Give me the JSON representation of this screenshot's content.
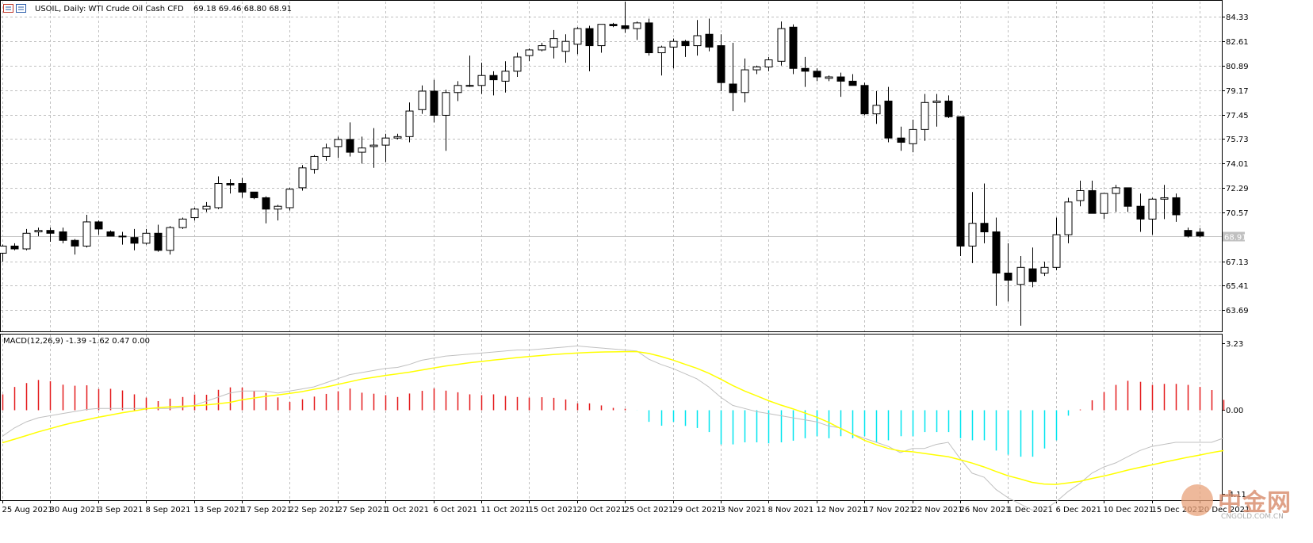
{
  "chart_data": {
    "type": "candlestick",
    "symbol": "USOIL",
    "timeframe": "Daily",
    "description": "WTI Crude Oil Cash CFD",
    "header_text": "USOIL, Daily:  WTI Crude Oil Cash CFD",
    "ohlc_text": "69.18 69.46 68.80 68.91",
    "last_price_label": "68.91",
    "last_price": 68.91,
    "price_axis_ticks": [
      "84.33",
      "82.61",
      "80.89",
      "79.17",
      "77.45",
      "75.73",
      "74.01",
      "72.29",
      "70.57",
      "67.13",
      "65.41",
      "63.69"
    ],
    "ylim": [
      62.2,
      85.4
    ],
    "date_labels": [
      {
        "label": "25 Aug 2021",
        "index": 0
      },
      {
        "label": "30 Aug 2021",
        "index": 4
      },
      {
        "label": "3 Sep 2021",
        "index": 8
      },
      {
        "label": "8 Sep 2021",
        "index": 12
      },
      {
        "label": "13 Sep 2021",
        "index": 16
      },
      {
        "label": "17 Sep 2021",
        "index": 20
      },
      {
        "label": "22 Sep 2021",
        "index": 24
      },
      {
        "label": "27 Sep 2021",
        "index": 28
      },
      {
        "label": "1 Oct 2021",
        "index": 32
      },
      {
        "label": "6 Oct 2021",
        "index": 36
      },
      {
        "label": "11 Oct 2021",
        "index": 40
      },
      {
        "label": "15 Oct 2021",
        "index": 44
      },
      {
        "label": "20 Oct 2021",
        "index": 48
      },
      {
        "label": "25 Oct 2021",
        "index": 52
      },
      {
        "label": "29 Oct 2021",
        "index": 56
      },
      {
        "label": "3 Nov 2021",
        "index": 60
      },
      {
        "label": "8 Nov 2021",
        "index": 64
      },
      {
        "label": "12 Nov 2021",
        "index": 68
      },
      {
        "label": "17 Nov 2021",
        "index": 72
      },
      {
        "label": "22 Nov 2021",
        "index": 76
      },
      {
        "label": "26 Nov 2021",
        "index": 80
      },
      {
        "label": "1 Dec 2021",
        "index": 84
      },
      {
        "label": "6 Dec 2021",
        "index": 88
      },
      {
        "label": "10 Dec 2021",
        "index": 92
      },
      {
        "label": "15 Dec 2021",
        "index": 96
      },
      {
        "label": "20 Dec 2021",
        "index": 100
      }
    ],
    "candles": [
      [
        67.7,
        68.3,
        67.1,
        68.2
      ],
      [
        68.2,
        68.4,
        67.9,
        68.0
      ],
      [
        68.0,
        69.4,
        67.9,
        69.1
      ],
      [
        69.2,
        69.5,
        68.9,
        69.3
      ],
      [
        69.3,
        69.5,
        68.5,
        69.1
      ],
      [
        69.2,
        69.5,
        68.4,
        68.6
      ],
      [
        68.6,
        68.7,
        67.6,
        68.2
      ],
      [
        68.2,
        70.4,
        68.1,
        69.9
      ],
      [
        69.9,
        70.0,
        69.0,
        69.4
      ],
      [
        69.2,
        69.3,
        68.9,
        68.9
      ],
      [
        68.9,
        69.2,
        68.3,
        68.9
      ],
      [
        68.8,
        69.4,
        67.9,
        68.4
      ],
      [
        68.4,
        69.4,
        68.3,
        69.1
      ],
      [
        69.1,
        69.7,
        67.8,
        67.9
      ],
      [
        67.9,
        69.6,
        67.6,
        69.5
      ],
      [
        69.5,
        70.2,
        69.4,
        70.1
      ],
      [
        70.2,
        70.9,
        70.0,
        70.8
      ],
      [
        70.8,
        71.3,
        70.6,
        71.0
      ],
      [
        70.9,
        73.1,
        70.8,
        72.6
      ],
      [
        72.6,
        72.9,
        71.9,
        72.5
      ],
      [
        72.6,
        73.0,
        71.6,
        72.0
      ],
      [
        72.0,
        72.0,
        71.5,
        71.6
      ],
      [
        71.6,
        71.7,
        69.8,
        70.8
      ],
      [
        70.8,
        71.1,
        70.0,
        71.0
      ],
      [
        70.9,
        72.3,
        70.7,
        72.2
      ],
      [
        72.3,
        73.9,
        72.1,
        73.7
      ],
      [
        73.6,
        74.6,
        73.3,
        74.5
      ],
      [
        74.5,
        75.4,
        74.2,
        75.1
      ],
      [
        75.2,
        75.9,
        74.4,
        75.7
      ],
      [
        75.7,
        76.9,
        74.5,
        74.8
      ],
      [
        74.8,
        75.9,
        74.0,
        75.1
      ],
      [
        75.2,
        76.5,
        73.7,
        75.3
      ],
      [
        75.3,
        76.1,
        74.1,
        75.8
      ],
      [
        75.8,
        76.1,
        75.7,
        75.9
      ],
      [
        75.9,
        78.3,
        75.5,
        77.7
      ],
      [
        77.8,
        79.5,
        77.5,
        79.1
      ],
      [
        79.1,
        79.9,
        76.9,
        77.4
      ],
      [
        77.4,
        79.2,
        74.9,
        79.0
      ],
      [
        79.0,
        79.8,
        78.4,
        79.5
      ],
      [
        79.5,
        81.6,
        79.4,
        79.5
      ],
      [
        79.5,
        81.1,
        78.9,
        80.2
      ],
      [
        80.2,
        80.5,
        78.8,
        79.9
      ],
      [
        79.8,
        81.2,
        79.0,
        80.5
      ],
      [
        80.5,
        81.8,
        80.1,
        81.5
      ],
      [
        81.6,
        82.1,
        81.2,
        82.0
      ],
      [
        82.0,
        82.5,
        81.9,
        82.3
      ],
      [
        82.2,
        83.4,
        81.4,
        82.8
      ],
      [
        81.9,
        83.1,
        81.1,
        82.6
      ],
      [
        82.4,
        83.6,
        81.7,
        83.5
      ],
      [
        83.5,
        83.7,
        80.5,
        82.3
      ],
      [
        82.3,
        83.8,
        81.8,
        83.8
      ],
      [
        83.8,
        83.9,
        83.6,
        83.7
      ],
      [
        83.7,
        85.4,
        83.2,
        83.5
      ],
      [
        83.5,
        84.0,
        82.7,
        83.9
      ],
      [
        83.9,
        84.2,
        81.6,
        81.8
      ],
      [
        81.8,
        82.3,
        80.2,
        82.2
      ],
      [
        82.2,
        82.8,
        80.7,
        82.6
      ],
      [
        82.6,
        82.7,
        81.5,
        82.3
      ],
      [
        82.3,
        84.1,
        81.6,
        83.0
      ],
      [
        83.1,
        84.2,
        81.9,
        82.2
      ],
      [
        82.3,
        83.1,
        79.1,
        79.7
      ],
      [
        79.6,
        82.5,
        77.7,
        79.0
      ],
      [
        79.0,
        81.4,
        78.3,
        80.6
      ],
      [
        80.6,
        80.9,
        80.3,
        80.8
      ],
      [
        80.8,
        81.5,
        80.5,
        81.3
      ],
      [
        81.2,
        84.0,
        80.9,
        83.5
      ],
      [
        83.6,
        83.8,
        80.3,
        80.7
      ],
      [
        80.7,
        81.5,
        79.4,
        80.5
      ],
      [
        80.5,
        80.7,
        79.8,
        80.1
      ],
      [
        80.0,
        80.2,
        79.8,
        80.1
      ],
      [
        80.1,
        80.4,
        78.7,
        79.8
      ],
      [
        79.8,
        80.3,
        79.5,
        79.5
      ],
      [
        79.5,
        79.7,
        77.4,
        77.5
      ],
      [
        77.5,
        79.1,
        76.8,
        78.1
      ],
      [
        78.4,
        79.4,
        75.5,
        75.8
      ],
      [
        75.8,
        76.6,
        74.9,
        75.5
      ],
      [
        75.4,
        77.1,
        74.8,
        76.4
      ],
      [
        76.4,
        78.9,
        75.6,
        78.3
      ],
      [
        78.3,
        78.9,
        76.6,
        78.4
      ],
      [
        78.4,
        78.8,
        77.2,
        77.3
      ],
      [
        77.3,
        77.3,
        67.5,
        68.2
      ],
      [
        68.2,
        72.0,
        67.0,
        69.8
      ],
      [
        69.8,
        72.6,
        68.4,
        69.2
      ],
      [
        69.2,
        70.2,
        64.0,
        66.3
      ],
      [
        66.3,
        68.4,
        64.3,
        65.8
      ],
      [
        65.5,
        67.5,
        62.6,
        66.7
      ],
      [
        66.6,
        68.1,
        65.3,
        65.7
      ],
      [
        66.3,
        67.1,
        66.1,
        66.7
      ],
      [
        66.7,
        70.2,
        66.5,
        69.0
      ],
      [
        69.0,
        71.6,
        68.4,
        71.3
      ],
      [
        71.4,
        72.8,
        71.0,
        72.1
      ],
      [
        72.1,
        72.8,
        70.5,
        70.5
      ],
      [
        70.5,
        71.8,
        70.1,
        71.9
      ],
      [
        71.9,
        72.5,
        70.6,
        72.3
      ],
      [
        72.3,
        72.3,
        70.6,
        71.0
      ],
      [
        71.0,
        71.9,
        69.2,
        70.1
      ],
      [
        70.1,
        71.6,
        69.0,
        71.5
      ],
      [
        71.5,
        72.5,
        70.1,
        71.6
      ],
      [
        71.6,
        71.9,
        69.9,
        70.4
      ],
      [
        69.3,
        69.5,
        68.8,
        68.9
      ],
      [
        69.18,
        69.46,
        68.8,
        68.91
      ]
    ],
    "macd": {
      "label": "MACD(12,26,9) -1.39 -1.62 0.47 0.00",
      "params": "12,26,9",
      "axis_top": "3.23",
      "axis_zero": "0.00",
      "axis_bottom": "-4.11",
      "ylim": [
        -4.11,
        3.23
      ],
      "histogram": [
        0.74,
        1.1,
        1.29,
        1.44,
        1.38,
        1.21,
        1.16,
        1.18,
        1.0,
        1.01,
        0.93,
        0.74,
        0.58,
        0.41,
        0.53,
        0.61,
        0.73,
        0.72,
        0.96,
        1.08,
        1.07,
        0.9,
        0.81,
        0.59,
        0.37,
        0.5,
        0.63,
        0.76,
        0.89,
        1.02,
        0.82,
        0.77,
        0.7,
        0.61,
        0.78,
        0.91,
        1.03,
        0.92,
        0.84,
        0.74,
        0.7,
        0.74,
        0.66,
        0.61,
        0.58,
        0.6,
        0.57,
        0.49,
        0.3,
        0.3,
        0.2,
        0.08,
        0.04,
        -0.03,
        -0.6,
        -0.79,
        -0.6,
        -0.8,
        -0.9,
        -1.1,
        -1.7,
        -1.7,
        -1.6,
        -1.6,
        -1.65,
        -1.6,
        -1.52,
        -1.4,
        -1.3,
        -1.4,
        -1.3,
        -1.4,
        -1.3,
        -1.6,
        -1.5,
        -1.3,
        -1.3,
        -1.1,
        -1.1,
        -1.1,
        -1.4,
        -1.5,
        -1.5,
        -2.0,
        -2.2,
        -2.3,
        -2.3,
        -1.9,
        -1.5,
        -0.3,
        0.0,
        0.45,
        0.85,
        1.2,
        1.4,
        1.35,
        1.2,
        1.25,
        1.25,
        1.2,
        1.1,
        0.95,
        0.47
      ],
      "signal": [
        -1.62,
        -1.45,
        -1.27,
        -1.09,
        -0.93,
        -0.77,
        -0.63,
        -0.5,
        -0.38,
        -0.27,
        -0.16,
        -0.07,
        0.03,
        0.09,
        0.13,
        0.16,
        0.18,
        0.22,
        0.28,
        0.35,
        0.47,
        0.56,
        0.64,
        0.71,
        0.79,
        0.87,
        0.98,
        1.09,
        1.22,
        1.35,
        1.48,
        1.57,
        1.66,
        1.74,
        1.82,
        1.92,
        2.02,
        2.12,
        2.2,
        2.28,
        2.34,
        2.41,
        2.47,
        2.53,
        2.58,
        2.63,
        2.68,
        2.72,
        2.75,
        2.78,
        2.8,
        2.81,
        2.82,
        2.82,
        2.73,
        2.59,
        2.41,
        2.21,
        2.01,
        1.77,
        1.48,
        1.17,
        0.9,
        0.67,
        0.43,
        0.22,
        0.04,
        -0.16,
        -0.37,
        -0.62,
        -0.92,
        -1.2,
        -1.5,
        -1.72,
        -1.9,
        -2.02,
        -2.06,
        -2.14,
        -2.22,
        -2.3,
        -2.45,
        -2.61,
        -2.8,
        -3.02,
        -3.23,
        -3.38,
        -3.55,
        -3.63,
        -3.65,
        -3.58,
        -3.5,
        -3.36,
        -3.24,
        -3.1,
        -2.95,
        -2.82,
        -2.7,
        -2.57,
        -2.45,
        -2.33,
        -2.22,
        -2.1,
        -2.0
      ],
      "main": [
        -1.3,
        -0.9,
        -0.6,
        -0.4,
        -0.3,
        -0.2,
        -0.1,
        0.0,
        0.05,
        0.05,
        0.05,
        0.05,
        0.05,
        0.05,
        0.05,
        0.1,
        0.2,
        0.4,
        0.6,
        0.8,
        0.9,
        0.9,
        0.9,
        0.8,
        0.9,
        1.0,
        1.1,
        1.3,
        1.5,
        1.7,
        1.8,
        1.9,
        2.0,
        2.05,
        2.2,
        2.4,
        2.5,
        2.6,
        2.65,
        2.7,
        2.75,
        2.8,
        2.85,
        2.9,
        2.9,
        2.95,
        3.0,
        3.05,
        3.1,
        3.05,
        3.0,
        2.95,
        2.9,
        2.85,
        2.45,
        2.2,
        2.0,
        1.75,
        1.5,
        1.1,
        0.6,
        0.2,
        0.05,
        -0.1,
        -0.2,
        -0.3,
        -0.4,
        -0.5,
        -0.6,
        -0.8,
        -0.9,
        -1.2,
        -1.4,
        -1.6,
        -1.8,
        -2.1,
        -1.9,
        -1.9,
        -1.7,
        -1.6,
        -2.4,
        -3.1,
        -3.3,
        -3.9,
        -4.3,
        -4.6,
        -4.9,
        -4.9,
        -4.5,
        -4.0,
        -3.6,
        -3.1,
        -2.8,
        -2.6,
        -2.3,
        -2.0,
        -1.8,
        -1.7,
        -1.6,
        -1.6,
        -1.6,
        -1.6,
        -1.39
      ]
    },
    "colors": {
      "background": "#ffffff",
      "grid": "#c0c0c0",
      "bull_body": "#ffffff",
      "bear_body": "#000000",
      "candle_outline": "#000000",
      "histogram_positive": "#e41a1c",
      "histogram_negative": "#00e5ee",
      "signal_line": "#ffff00",
      "macd_line": "#c0c0c0",
      "last_price_line": "#c0c0c0",
      "last_price_badge": "#c0c0c0"
    },
    "grid": true
  },
  "watermark": {
    "brand": "中金网",
    "domain": "CNGOLD.COM.CN"
  }
}
